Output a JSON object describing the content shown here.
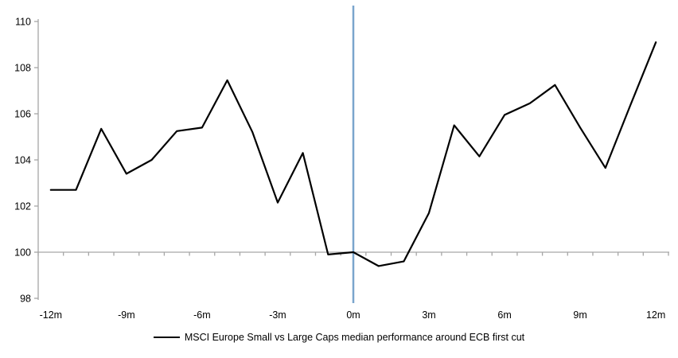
{
  "chart": {
    "legend_label": "MSCI Europe Small vs Large Caps median performance around ECB first cut"
  },
  "chart_data": {
    "type": "line",
    "title": "",
    "xlabel": "",
    "ylabel": "",
    "x_months": [
      -12,
      -11,
      -10,
      -9,
      -8,
      -7,
      -6,
      -5,
      -4,
      -3,
      -2,
      -1,
      0,
      1,
      2,
      3,
      4,
      5,
      6,
      7,
      8,
      9,
      10,
      11,
      12
    ],
    "series": [
      {
        "name": "MSCI Europe Small vs Large Caps median performance around ECB first cut",
        "values": [
          102.7,
          102.7,
          105.35,
          103.4,
          104.0,
          105.25,
          105.4,
          107.45,
          105.2,
          102.15,
          104.3,
          99.9,
          100.0,
          99.4,
          99.6,
          101.7,
          105.5,
          104.15,
          105.95,
          106.45,
          107.25,
          105.4,
          103.65,
          106.4,
          109.1
        ],
        "color": "#000000"
      }
    ],
    "x_tick_months": [
      -12,
      -9,
      -6,
      -3,
      0,
      3,
      6,
      9,
      12
    ],
    "x_tick_labels": [
      "-12m",
      "-9m",
      "-6m",
      "-3m",
      "0m",
      "3m",
      "6m",
      "9m",
      "12m"
    ],
    "y_ticks": [
      98,
      100,
      102,
      104,
      106,
      108,
      110
    ],
    "y_tick_labels": [
      "98",
      "100",
      "102",
      "104",
      "106",
      "108",
      "110"
    ],
    "ylim": [
      98,
      110
    ],
    "xlim_months": [
      -12.5,
      12.5
    ],
    "reference_lines": {
      "vertical_at_month": 0,
      "horizontal_at_value": 100
    },
    "colors": {
      "series": "#000000",
      "vertical_reference_line": "#7AA5CD",
      "axis_lines": "#A6A6A6",
      "tick_labels": "#000000"
    },
    "grid": "off",
    "legend_position": "bottom-center"
  }
}
